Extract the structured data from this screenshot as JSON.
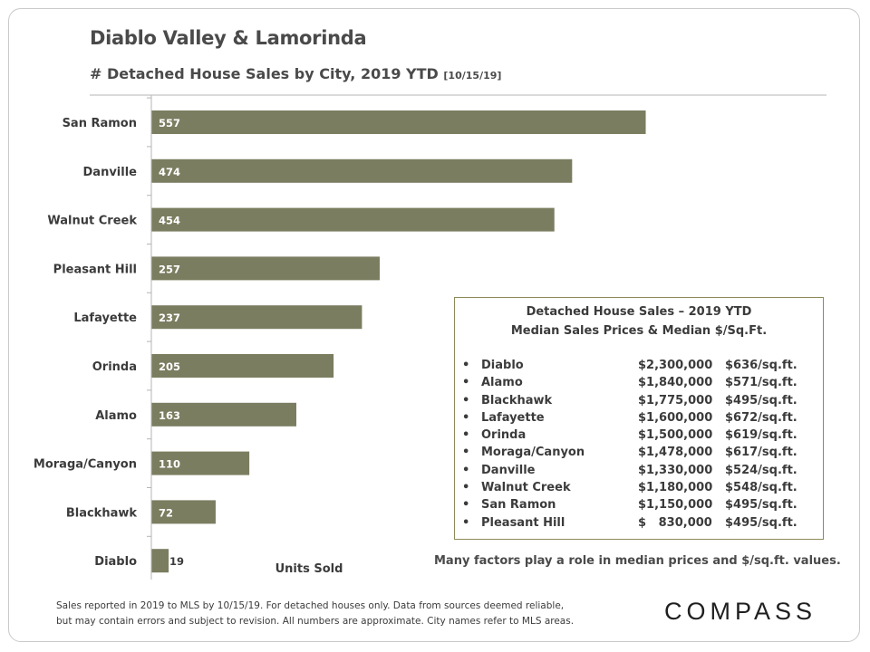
{
  "title": "Diablo Valley & Lamorinda",
  "subtitle": "# Detached House Sales by City, 2019 YTD",
  "subtitle_date": "[10/15/19]",
  "chart_data": {
    "type": "bar",
    "orientation": "horizontal",
    "categories": [
      "San Ramon",
      "Danville",
      "Walnut Creek",
      "Pleasant Hill",
      "Lafayette",
      "Orinda",
      "Alamo",
      "Moraga/Canyon",
      "Blackhawk",
      "Diablo"
    ],
    "values": [
      557,
      474,
      454,
      257,
      237,
      205,
      163,
      110,
      72,
      19
    ],
    "xlabel": "Units Sold",
    "xlim": [
      0,
      570
    ],
    "bar_color": "#7b7d60",
    "label_color_inside": "#ffffff",
    "label_color_outside": "#3b3b3b"
  },
  "infobox": {
    "title_line1": "Detached House Sales – 2019 YTD",
    "title_line2": "Median Sales Prices & Median $/Sq.Ft.",
    "bullet": "•",
    "rows": [
      {
        "city": "Diablo",
        "price": "$2,300,000",
        "ppsf": "$636/sq.ft."
      },
      {
        "city": "Alamo",
        "price": "$1,840,000",
        "ppsf": "$571/sq.ft."
      },
      {
        "city": "Blackhawk",
        "price": "$1,775,000",
        "ppsf": "$495/sq.ft."
      },
      {
        "city": "Lafayette",
        "price": "$1,600,000",
        "ppsf": "$672/sq.ft."
      },
      {
        "city": "Orinda",
        "price": "$1,500,000",
        "ppsf": "$619/sq.ft."
      },
      {
        "city": "Moraga/Canyon",
        "price": "$1,478,000",
        "ppsf": "$617/sq.ft."
      },
      {
        "city": "Danville",
        "price": "$1,330,000",
        "ppsf": "$524/sq.ft."
      },
      {
        "city": "Walnut Creek",
        "price": "$1,180,000",
        "ppsf": "$548/sq.ft."
      },
      {
        "city": "San Ramon",
        "price": "$1,150,000",
        "ppsf": "$495/sq.ft."
      },
      {
        "city": "Pleasant Hill",
        "price": "$   830,000",
        "ppsf": "$495/sq.ft."
      }
    ]
  },
  "factors_note": "Many factors play a role in median prices and $/sq.ft. values.",
  "footnote_line1": "Sales reported in 2019 to MLS by 10/15/19. For detached houses only. Data from sources deemed reliable,",
  "footnote_line2": "but may contain errors and subject to revision. All numbers are approximate. City names refer to MLS areas.",
  "logo": "COMPASS",
  "colors": {
    "bar": "#7b7d60",
    "box_border": "#8f8a59",
    "axis": "#b5b5b5"
  }
}
